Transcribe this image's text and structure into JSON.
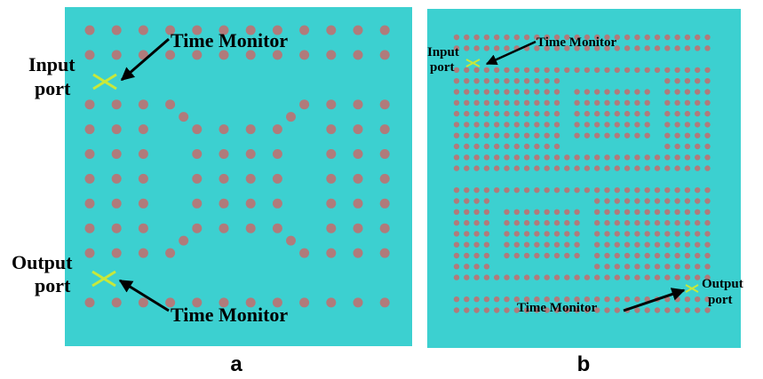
{
  "colors": {
    "background": "#3cd0d0",
    "rod": "#b07b7b",
    "port_marker": "#c8e83a",
    "arrow": "#000000"
  },
  "panel_a": {
    "caption": "a",
    "monitor_top": "Time Monitor",
    "monitor_bottom": "Time Monitor",
    "input_line1": "Input",
    "input_line2": "port",
    "output_line1": "Output",
    "output_line2": "port"
  },
  "panel_b": {
    "caption": "b",
    "monitor_top": "Time Monitor",
    "monitor_bottom": "Time Monitor",
    "input_line1": "Input",
    "input_line2": "port",
    "output_line1": "Output",
    "output_line2": "port"
  },
  "icons": {
    "port_marker": "x-cross-icon",
    "arrow": "arrow-icon"
  }
}
